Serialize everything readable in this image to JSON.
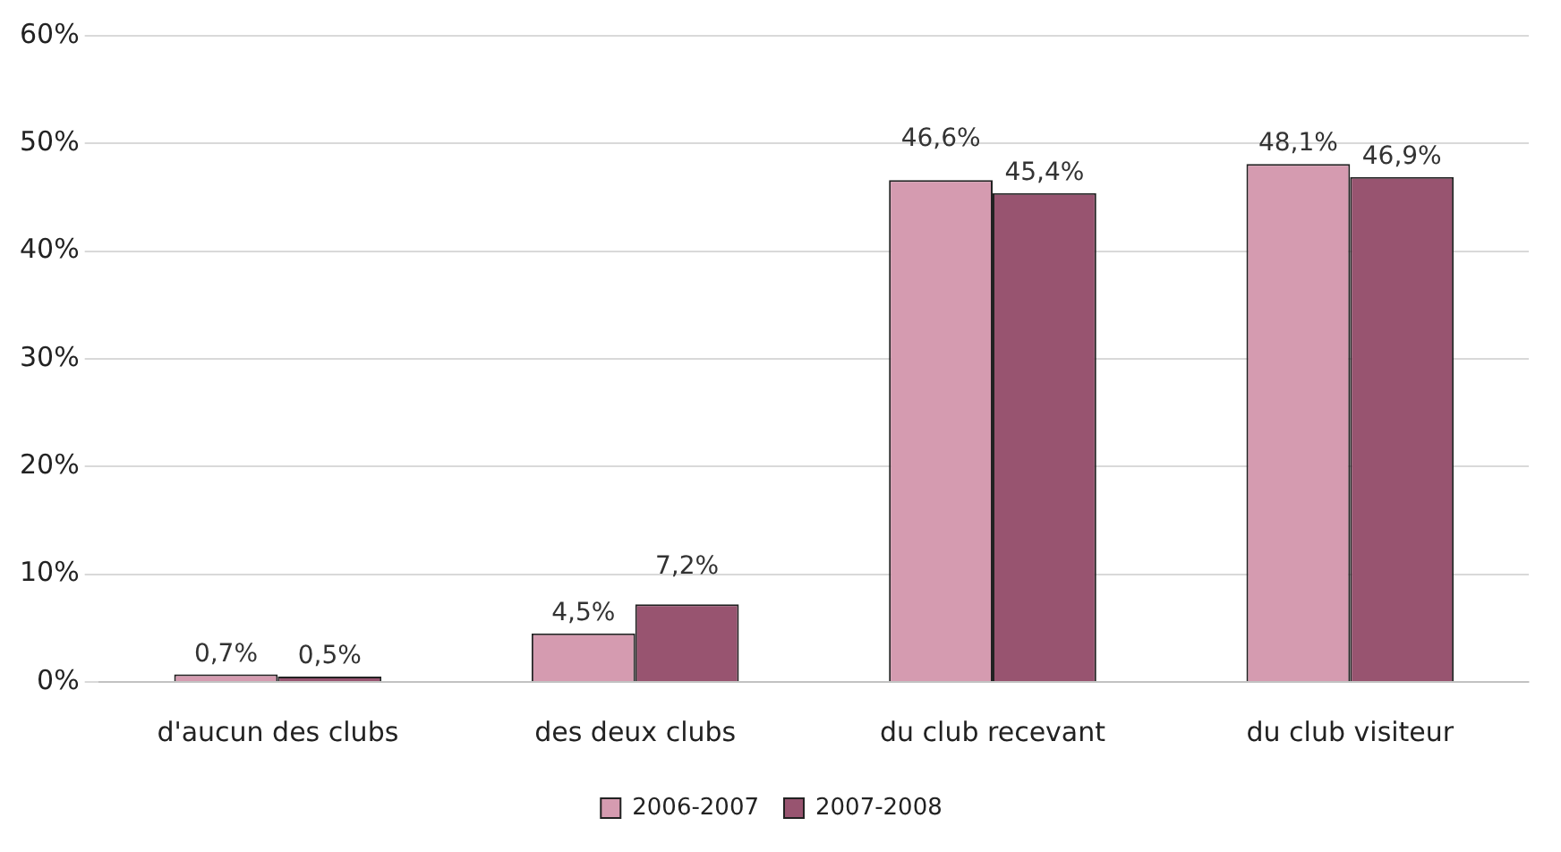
{
  "chart_data": {
    "type": "bar",
    "categories": [
      "d'aucun des clubs",
      "des deux clubs",
      "du club recevant",
      "du club visiteur"
    ],
    "series": [
      {
        "name": "2006-2007",
        "color": "#d59bb0",
        "values": [
          0.7,
          4.5,
          46.6,
          48.1
        ],
        "value_labels": [
          "0,7%",
          "4,5%",
          "46,6%",
          "48,1%"
        ]
      },
      {
        "name": "2007-2008",
        "color": "#985470",
        "values": [
          0.5,
          7.2,
          45.4,
          46.9
        ],
        "value_labels": [
          "0,5%",
          "7,2%",
          "45,4%",
          "46,9%"
        ]
      }
    ],
    "ylim": [
      0,
      60
    ],
    "yticks": [
      {
        "value": 0,
        "label": "0%"
      },
      {
        "value": 10,
        "label": "10%"
      },
      {
        "value": 20,
        "label": "20%"
      },
      {
        "value": 30,
        "label": "30%"
      },
      {
        "value": 40,
        "label": "40%"
      },
      {
        "value": 50,
        "label": "50%"
      },
      {
        "value": 60,
        "label": "60%"
      }
    ],
    "grid": "y",
    "legend": "bottom"
  }
}
